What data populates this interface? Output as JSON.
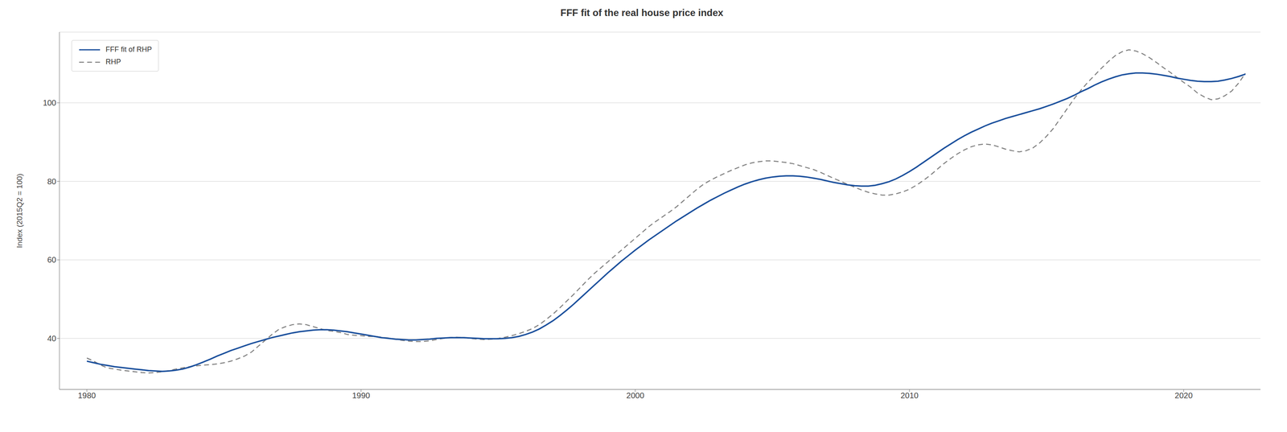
{
  "chart_data": {
    "type": "line",
    "title": "FFF fit of the real house price index",
    "y_label": "Index (2015Q2 = 100)",
    "xlim": [
      1979.0,
      2022.8
    ],
    "ylim": [
      27,
      118
    ],
    "xticks": [
      1980,
      1990,
      2000,
      2010,
      2020
    ],
    "yticks": [
      40,
      60,
      80,
      100
    ],
    "grid": "y",
    "legend": "upper left",
    "x": [
      1980.0,
      1980.25,
      1980.5,
      1980.75,
      1981.0,
      1981.25,
      1981.5,
      1981.75,
      1982.0,
      1982.25,
      1982.5,
      1982.75,
      1983.0,
      1983.25,
      1983.5,
      1983.75,
      1984.0,
      1984.25,
      1984.5,
      1984.75,
      1985.0,
      1985.25,
      1985.5,
      1985.75,
      1986.0,
      1986.25,
      1986.5,
      1986.75,
      1987.0,
      1987.25,
      1987.5,
      1987.75,
      1988.0,
      1988.25,
      1988.5,
      1988.75,
      1989.0,
      1989.25,
      1989.5,
      1989.75,
      1990.0,
      1990.25,
      1990.5,
      1990.75,
      1991.0,
      1991.25,
      1991.5,
      1991.75,
      1992.0,
      1992.25,
      1992.5,
      1992.75,
      1993.0,
      1993.25,
      1993.5,
      1993.75,
      1994.0,
      1994.25,
      1994.5,
      1994.75,
      1995.0,
      1995.25,
      1995.5,
      1995.75,
      1996.0,
      1996.25,
      1996.5,
      1996.75,
      1997.0,
      1997.25,
      1997.5,
      1997.75,
      1998.0,
      1998.25,
      1998.5,
      1998.75,
      1999.0,
      1999.25,
      1999.5,
      1999.75,
      2000.0,
      2000.25,
      2000.5,
      2000.75,
      2001.0,
      2001.25,
      2001.5,
      2001.75,
      2002.0,
      2002.25,
      2002.5,
      2002.75,
      2003.0,
      2003.25,
      2003.5,
      2003.75,
      2004.0,
      2004.25,
      2004.5,
      2004.75,
      2005.0,
      2005.25,
      2005.5,
      2005.75,
      2006.0,
      2006.25,
      2006.5,
      2006.75,
      2007.0,
      2007.25,
      2007.5,
      2007.75,
      2008.0,
      2008.25,
      2008.5,
      2008.75,
      2009.0,
      2009.25,
      2009.5,
      2009.75,
      2010.0,
      2010.25,
      2010.5,
      2010.75,
      2011.0,
      2011.25,
      2011.5,
      2011.75,
      2012.0,
      2012.25,
      2012.5,
      2012.75,
      2013.0,
      2013.25,
      2013.5,
      2013.75,
      2014.0,
      2014.25,
      2014.5,
      2014.75,
      2015.0,
      2015.25,
      2015.5,
      2015.75,
      2016.0,
      2016.25,
      2016.5,
      2016.75,
      2017.0,
      2017.25,
      2017.5,
      2017.75,
      2018.0,
      2018.25,
      2018.5,
      2018.75,
      2019.0,
      2019.25,
      2019.5,
      2019.75,
      2020.0,
      2020.25,
      2020.5,
      2020.75,
      2021.0,
      2021.25,
      2021.5,
      2021.75,
      2022.0,
      2022.25
    ],
    "series": [
      {
        "name": "FFF fit of RHP",
        "color": "#1a4f9c",
        "line_style": "solid",
        "values": [
          34.2,
          33.8,
          33.4,
          33.1,
          32.8,
          32.6,
          32.4,
          32.2,
          32.0,
          31.8,
          31.7,
          31.6,
          31.7,
          31.9,
          32.2,
          32.7,
          33.3,
          34.0,
          34.7,
          35.5,
          36.2,
          36.9,
          37.5,
          38.1,
          38.7,
          39.2,
          39.7,
          40.2,
          40.6,
          41.0,
          41.4,
          41.7,
          41.9,
          42.1,
          42.2,
          42.2,
          42.1,
          41.9,
          41.7,
          41.4,
          41.1,
          40.8,
          40.5,
          40.2,
          40.0,
          39.8,
          39.7,
          39.6,
          39.6,
          39.7,
          39.8,
          40.0,
          40.1,
          40.2,
          40.2,
          40.2,
          40.1,
          40.0,
          39.9,
          39.9,
          39.9,
          40.0,
          40.2,
          40.5,
          41.0,
          41.6,
          42.4,
          43.4,
          44.5,
          45.8,
          47.2,
          48.7,
          50.3,
          51.9,
          53.5,
          55.1,
          56.7,
          58.2,
          59.7,
          61.1,
          62.5,
          63.8,
          65.1,
          66.3,
          67.5,
          68.7,
          69.9,
          71.0,
          72.1,
          73.2,
          74.2,
          75.2,
          76.1,
          77.0,
          77.8,
          78.6,
          79.3,
          79.9,
          80.4,
          80.8,
          81.1,
          81.3,
          81.4,
          81.4,
          81.3,
          81.1,
          80.8,
          80.5,
          80.1,
          79.7,
          79.4,
          79.1,
          78.9,
          78.8,
          78.8,
          79.0,
          79.4,
          79.9,
          80.6,
          81.5,
          82.5,
          83.6,
          84.8,
          86.0,
          87.2,
          88.4,
          89.5,
          90.6,
          91.6,
          92.5,
          93.3,
          94.1,
          94.8,
          95.4,
          96.0,
          96.5,
          97.0,
          97.5,
          98.0,
          98.5,
          99.1,
          99.7,
          100.4,
          101.1,
          101.9,
          102.8,
          103.6,
          104.5,
          105.3,
          106.0,
          106.6,
          107.1,
          107.4,
          107.6,
          107.6,
          107.5,
          107.3,
          107.0,
          106.7,
          106.3,
          106.0,
          105.7,
          105.5,
          105.4,
          105.4,
          105.5,
          105.8,
          106.2,
          106.7,
          107.3
        ]
      },
      {
        "name": "RHP",
        "color": "#808080",
        "line_style": "dashed",
        "values": [
          35.0,
          34.2,
          33.2,
          32.5,
          32.2,
          31.9,
          31.7,
          31.5,
          31.3,
          31.2,
          31.3,
          31.5,
          31.8,
          32.2,
          32.5,
          32.8,
          33.0,
          33.2,
          33.3,
          33.5,
          33.8,
          34.2,
          34.8,
          35.5,
          36.5,
          38.0,
          39.5,
          41.0,
          42.3,
          43.0,
          43.5,
          43.7,
          43.5,
          43.0,
          42.5,
          42.0,
          41.8,
          41.5,
          41.0,
          40.8,
          40.7,
          40.5,
          40.5,
          40.3,
          40.1,
          39.8,
          39.5,
          39.3,
          39.2,
          39.2,
          39.4,
          39.7,
          40.0,
          40.2,
          40.3,
          40.2,
          40.0,
          39.8,
          39.7,
          39.8,
          40.0,
          40.3,
          40.7,
          41.2,
          41.8,
          42.5,
          43.5,
          44.8,
          46.2,
          47.8,
          49.5,
          51.2,
          53.0,
          54.8,
          56.5,
          58.0,
          59.5,
          61.0,
          62.5,
          64.0,
          65.5,
          67.0,
          68.5,
          69.8,
          71.0,
          72.2,
          73.5,
          75.0,
          76.5,
          78.0,
          79.3,
          80.3,
          81.2,
          82.0,
          82.8,
          83.5,
          84.2,
          84.7,
          85.0,
          85.2,
          85.2,
          85.0,
          84.8,
          84.5,
          84.0,
          83.5,
          83.0,
          82.3,
          81.5,
          80.7,
          80.0,
          79.2,
          78.5,
          77.8,
          77.2,
          76.8,
          76.5,
          76.5,
          76.8,
          77.3,
          78.0,
          79.0,
          80.2,
          81.5,
          83.0,
          84.5,
          85.8,
          87.0,
          88.0,
          88.8,
          89.3,
          89.5,
          89.3,
          88.8,
          88.2,
          87.8,
          87.5,
          87.8,
          88.5,
          89.8,
          91.5,
          93.5,
          96.0,
          98.5,
          101.0,
          103.2,
          105.2,
          107.0,
          108.8,
          110.5,
          112.0,
          113.0,
          113.5,
          113.2,
          112.5,
          111.5,
          110.3,
          109.0,
          107.8,
          106.5,
          105.2,
          104.0,
          102.5,
          101.5,
          100.8,
          101.0,
          101.8,
          103.0,
          105.0,
          107.5
        ]
      }
    ]
  }
}
